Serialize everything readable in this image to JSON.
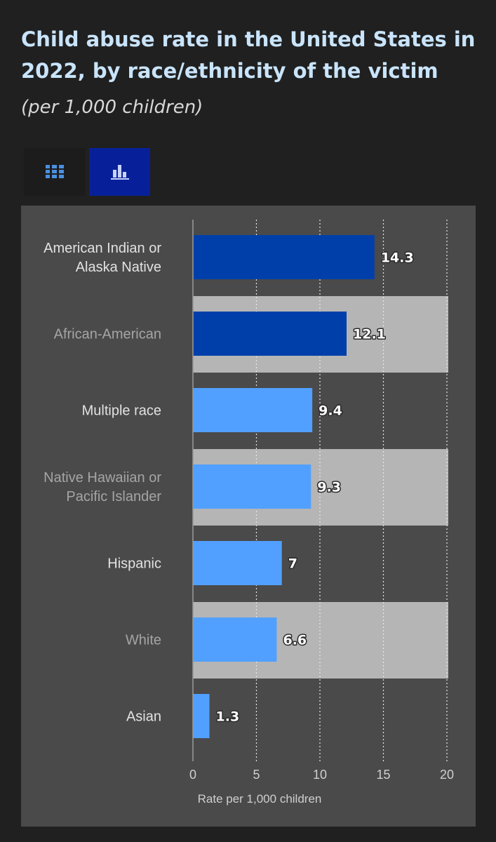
{
  "header": {
    "title": "Child abuse rate in the United States in 2022, by race/ethnicity of the victim",
    "subtitle": "(per 1,000 children)"
  },
  "view_toggle": {
    "options": [
      {
        "icon": "grid-icon",
        "selected": false
      },
      {
        "icon": "bar-chart-icon",
        "selected": true
      }
    ]
  },
  "colors": {
    "dark_bar": "#003faa",
    "light_bar": "#51a0ff",
    "row_band": "#b5b5b5",
    "panel": "#4a4a4a",
    "page": "#202020"
  },
  "chart_data": {
    "type": "bar",
    "orientation": "horizontal",
    "categories": [
      "American Indian or Alaska Native",
      "African-American",
      "Multiple race",
      "Native Hawaiian or Pacific Islander",
      "Hispanic",
      "White",
      "Asian"
    ],
    "values": [
      14.3,
      12.1,
      9.4,
      9.3,
      7,
      6.6,
      1.3
    ],
    "data_labels": [
      "14.3",
      "12.1",
      "9.4",
      "9.3",
      "7",
      "6.6",
      "1.3"
    ],
    "x_ticks": [
      "0",
      "5",
      "10",
      "15",
      "20"
    ],
    "xlim": [
      0,
      20
    ],
    "xlabel": "Rate per 1,000 children",
    "ylabel": "",
    "grid": true
  }
}
